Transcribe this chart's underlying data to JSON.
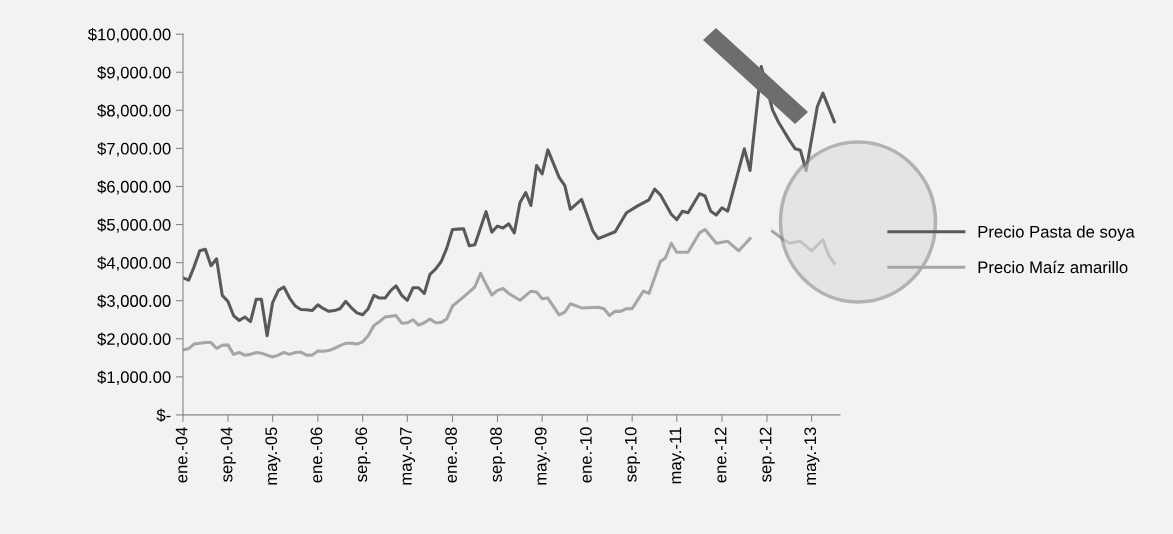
{
  "chart_data": {
    "type": "line",
    "series": [
      {
        "name": "Precio Pasta de soya",
        "color": "#595959",
        "x": [
          "2004-01",
          "2004-02",
          "2004-03",
          "2004-04",
          "2004-05",
          "2004-06",
          "2004-07",
          "2004-08",
          "2004-09",
          "2004-10",
          "2004-11",
          "2004-12",
          "2005-01",
          "2005-02",
          "2005-03",
          "2005-04",
          "2005-05",
          "2005-06",
          "2005-07",
          "2005-08",
          "2005-09",
          "2005-10",
          "2005-11",
          "2005-12",
          "2006-01",
          "2006-02",
          "2006-03",
          "2006-04",
          "2006-05",
          "2006-06",
          "2006-07",
          "2006-08",
          "2006-09",
          "2006-10",
          "2006-11",
          "2006-12",
          "2007-01",
          "2007-02",
          "2007-03",
          "2007-04",
          "2007-05",
          "2007-06",
          "2007-07",
          "2007-08",
          "2007-09",
          "2007-10",
          "2007-11",
          "2007-12",
          "2008-01",
          "2008-02",
          "2008-03",
          "2008-04",
          "2008-05",
          "2008-06",
          "2008-07",
          "2008-08",
          "2008-09",
          "2008-10",
          "2008-11",
          "2008-12",
          "2009-01",
          "2009-02",
          "2009-03",
          "2009-04",
          "2009-05",
          "2009-06",
          "2009-08",
          "2009-09",
          "2009-10",
          "2009-12",
          "2010-02",
          "2010-03",
          "2010-06",
          "2010-08",
          "2010-10",
          "2010-12",
          "2011-01",
          "2011-02",
          "2011-04",
          "2011-05",
          "2011-06",
          "2011-07",
          "2011-09",
          "2011-10",
          "2011-11",
          "2011-12",
          "2012-01",
          "2012-02",
          "2012-03",
          "2012-05",
          "2012-06",
          "2012-08",
          "2012-10",
          "2012-11",
          "2013-01",
          "2013-02",
          "2013-03",
          "2013-04",
          "2013-06",
          "2013-07",
          "2013-09"
        ],
        "values": [
          3600,
          3540,
          3890,
          4310,
          4350,
          3920,
          4100,
          3140,
          2980,
          2610,
          2480,
          2570,
          2450,
          3040,
          3040,
          2080,
          2950,
          3270,
          3360,
          3070,
          2860,
          2770,
          2760,
          2740,
          2890,
          2790,
          2720,
          2740,
          2790,
          2980,
          2820,
          2680,
          2630,
          2790,
          3140,
          3070,
          3070,
          3270,
          3390,
          3140,
          3010,
          3340,
          3340,
          3190,
          3690,
          3830,
          4030,
          4380,
          4870,
          4880,
          4890,
          4440,
          4470,
          4910,
          5340,
          4800,
          4960,
          4910,
          5020,
          4780,
          5580,
          5840,
          5500,
          6550,
          6330,
          6960,
          6240,
          6020,
          5400,
          5660,
          4820,
          4630,
          4810,
          5310,
          5490,
          5650,
          5930,
          5780,
          5270,
          5130,
          5350,
          5310,
          5810,
          5750,
          5350,
          5250,
          5440,
          5350,
          5880,
          6990,
          6420,
          9150,
          8010,
          7700,
          7210,
          6990,
          6950,
          6420,
          8100,
          8450,
          7700
        ]
      },
      {
        "name": "Precio Maíz amarillo",
        "color": "#a6a6a6",
        "x": [
          "2004-01",
          "2004-02",
          "2004-03",
          "2004-04",
          "2004-05",
          "2004-06",
          "2004-07",
          "2004-08",
          "2004-09",
          "2004-10",
          "2004-11",
          "2004-12",
          "2005-01",
          "2005-02",
          "2005-03",
          "2005-04",
          "2005-05",
          "2005-06",
          "2005-07",
          "2005-08",
          "2005-09",
          "2005-10",
          "2005-11",
          "2005-12",
          "2006-01",
          "2006-02",
          "2006-03",
          "2006-04",
          "2006-05",
          "2006-06",
          "2006-07",
          "2006-08",
          "2006-09",
          "2006-10",
          "2006-11",
          "2006-12",
          "2007-01",
          "2007-02",
          "2007-03",
          "2007-04",
          "2007-05",
          "2007-06",
          "2007-07",
          "2007-08",
          "2007-09",
          "2007-10",
          "2007-11",
          "2007-12",
          "2008-01",
          "2008-02",
          "2008-03",
          "2008-04",
          "2008-05",
          "2008-06",
          "2008-07",
          "2008-08",
          "2008-09",
          "2008-10",
          "2008-11",
          "2009-01",
          "2009-03",
          "2009-04",
          "2009-05",
          "2009-06",
          "2009-08",
          "2009-09",
          "2009-10",
          "2009-12",
          "2010-03",
          "2010-04",
          "2010-05",
          "2010-06",
          "2010-07",
          "2010-08",
          "2010-09",
          "2010-11",
          "2010-12",
          "2011-02",
          "2011-03",
          "2011-04",
          "2011-05",
          "2011-07",
          "2011-09",
          "2011-10",
          "2011-12",
          "2012-02",
          "2012-04",
          "2012-05",
          "2012-06",
          "2012-07",
          "2012-10",
          "2012-12",
          "2013-01",
          "2013-03",
          "2013-05",
          "2013-07",
          "2013-08",
          "2013-09"
        ],
        "values": [
          1710,
          1740,
          1860,
          1880,
          1900,
          1900,
          1750,
          1830,
          1840,
          1590,
          1640,
          1570,
          1590,
          1640,
          1620,
          1570,
          1520,
          1570,
          1640,
          1590,
          1640,
          1650,
          1570,
          1570,
          1680,
          1670,
          1690,
          1750,
          1820,
          1880,
          1880,
          1860,
          1920,
          2080,
          2350,
          2450,
          2570,
          2590,
          2610,
          2410,
          2420,
          2500,
          2360,
          2420,
          2520,
          2420,
          2430,
          2520,
          2860,
          2980,
          3100,
          3230,
          3360,
          3720,
          3430,
          3150,
          3270,
          3320,
          3190,
          3010,
          3250,
          3230,
          3050,
          3070,
          2630,
          2700,
          2920,
          2810,
          2830,
          2790,
          2610,
          2720,
          2720,
          2790,
          2790,
          3250,
          3190,
          4030,
          4130,
          4510,
          4270,
          4270,
          4780,
          4870,
          4510,
          4560,
          4310,
          4470,
          4630,
          null,
          4820,
          4600,
          4510,
          4560,
          4310,
          4600,
          4200,
          3980
        ]
      }
    ],
    "xlim": [
      "2004-01",
      "2013-10"
    ],
    "xticks": [
      {
        "value": "2004-01",
        "label": "ene.-04"
      },
      {
        "value": "2004-09",
        "label": "sep.-04"
      },
      {
        "value": "2005-05",
        "label": "may.-05"
      },
      {
        "value": "2006-01",
        "label": "ene.-06"
      },
      {
        "value": "2006-09",
        "label": "sep.-06"
      },
      {
        "value": "2007-05",
        "label": "may.-07"
      },
      {
        "value": "2008-01",
        "label": "ene.-08"
      },
      {
        "value": "2008-09",
        "label": "sep.-08"
      },
      {
        "value": "2009-05",
        "label": "may.-09"
      },
      {
        "value": "2010-01",
        "label": "ene.-10"
      },
      {
        "value": "2010-09",
        "label": "sep.-10"
      },
      {
        "value": "2011-05",
        "label": "may.-11"
      },
      {
        "value": "2012-01",
        "label": "ene.-12"
      },
      {
        "value": "2012-09",
        "label": "sep.-12"
      },
      {
        "value": "2013-05",
        "label": "may.-13"
      }
    ],
    "ylim": [
      0,
      10000
    ],
    "yticks": [
      {
        "value": 0,
        "label": "$-"
      },
      {
        "value": 1000,
        "label": "$1,000.00"
      },
      {
        "value": 2000,
        "label": "$2,000.00"
      },
      {
        "value": 3000,
        "label": "$3,000.00"
      },
      {
        "value": 4000,
        "label": "$4,000.00"
      },
      {
        "value": 5000,
        "label": "$5,000.00"
      },
      {
        "value": 6000,
        "label": "$6,000.00"
      },
      {
        "value": 7000,
        "label": "$7,000.00"
      },
      {
        "value": 8000,
        "label": "$8,000.00"
      },
      {
        "value": 9000,
        "label": "$9,000.00"
      },
      {
        "value": 10000,
        "label": "$10,000.00"
      }
    ],
    "grid": false,
    "legend": "right",
    "marker": "none",
    "line_style": "solid"
  }
}
